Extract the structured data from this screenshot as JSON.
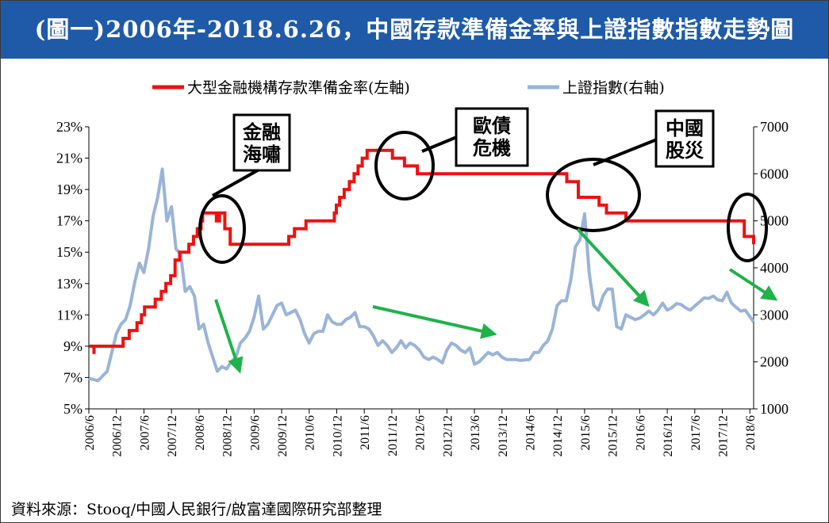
{
  "header": {
    "title": "(圖一)2006年-2018.6.26，中國存款準備金率與上證指數指數走勢圖"
  },
  "footer": {
    "source": "資料來源：Stooq/中國人民銀行/啟富達國際研究部整理"
  },
  "colors": {
    "header_bg": "#1f5aa8",
    "rrr_line": "#ee1111",
    "index_line": "#9ab4d8",
    "arrows": "#1fb24a",
    "circles": "#000000"
  },
  "chart_data": {
    "type": "line",
    "title": "(圖一)2006年-2018.6.26，中國存款準備金率與上證指數指數走勢圖",
    "legend_position": "top",
    "grid": false,
    "x_range": [
      "2006-06",
      "2018-06-26"
    ],
    "x_tick_labels": [
      "2006/6",
      "2006/12",
      "2007/6",
      "2007/12",
      "2008/6",
      "2008/12",
      "2009/6",
      "2009/12",
      "2010/6",
      "2010/12",
      "2011/6",
      "2011/12",
      "2012/6",
      "2012/12",
      "2013/6",
      "2013/12",
      "2014/6",
      "2014/12",
      "2015/6",
      "2015/12",
      "2016/6",
      "2016/12",
      "2017/6",
      "2017/12",
      "2018/6"
    ],
    "y_left": {
      "ticks": [
        "5%",
        "7%",
        "9%",
        "11%",
        "13%",
        "15%",
        "17%",
        "19%",
        "21%",
        "23%"
      ],
      "min": 5,
      "max": 23
    },
    "y_right": {
      "ticks": [
        "1000",
        "2000",
        "3000",
        "4000",
        "5000",
        "6000",
        "7000"
      ],
      "min": 1000,
      "max": 7000
    },
    "series": [
      {
        "name": "大型金融機構存款準備金率(左軸)",
        "axis": "left",
        "step": true,
        "points": [
          [
            "2006-06",
            9.0
          ],
          [
            "2006-07-05",
            8.5
          ],
          [
            "2006-07-05",
            9.0
          ],
          [
            "2006-08-15",
            9.0
          ],
          [
            "2006-11-15",
            9.0
          ],
          [
            "2007-01-15",
            9.5
          ],
          [
            "2007-02-25",
            10.0
          ],
          [
            "2007-04-16",
            10.5
          ],
          [
            "2007-05-15",
            11.0
          ],
          [
            "2007-06-05",
            11.5
          ],
          [
            "2007-08-15",
            12.0
          ],
          [
            "2007-09-25",
            12.5
          ],
          [
            "2007-10-25",
            13.0
          ],
          [
            "2007-11-26",
            13.5
          ],
          [
            "2007-12-25",
            14.5
          ],
          [
            "2008-01-25",
            15.0
          ],
          [
            "2008-03-25",
            15.5
          ],
          [
            "2008-04-25",
            16.0
          ],
          [
            "2008-05-20",
            16.5
          ],
          [
            "2008-06-15",
            17.0
          ],
          [
            "2008-06-25",
            17.5
          ],
          [
            "2008-09-25",
            17.0
          ],
          [
            "2008-10-15",
            17.5
          ],
          [
            "2008-11-20",
            16.5
          ],
          [
            "2008-12-25",
            15.5
          ],
          [
            "2010-01-18",
            16.0
          ],
          [
            "2010-02-25",
            16.5
          ],
          [
            "2010-05-10",
            17.0
          ],
          [
            "2010-11-16",
            17.5
          ],
          [
            "2010-11-29",
            18.0
          ],
          [
            "2010-12-20",
            18.5
          ],
          [
            "2011-01-20",
            19.0
          ],
          [
            "2011-02-24",
            19.5
          ],
          [
            "2011-03-25",
            20.0
          ],
          [
            "2011-04-21",
            20.5
          ],
          [
            "2011-05-18",
            21.0
          ],
          [
            "2011-06-20",
            21.5
          ],
          [
            "2011-12-05",
            21.0
          ],
          [
            "2012-02-24",
            20.5
          ],
          [
            "2012-05-18",
            20.0
          ],
          [
            "2015-02-05",
            19.5
          ],
          [
            "2015-04-20",
            18.5
          ],
          [
            "2015-09-06",
            18.0
          ],
          [
            "2015-10-24",
            17.5
          ],
          [
            "2016-03-01",
            17.0
          ],
          [
            "2018-04-25",
            16.0
          ],
          [
            "2018-06-26",
            15.5
          ]
        ]
      },
      {
        "name": "上證指數(右軸)",
        "axis": "right",
        "points": [
          [
            "2006-06",
            1650
          ],
          [
            "2006-08",
            1600
          ],
          [
            "2006-10",
            1800
          ],
          [
            "2006-12",
            2600
          ],
          [
            "2007-01",
            2800
          ],
          [
            "2007-02",
            2900
          ],
          [
            "2007-03",
            3200
          ],
          [
            "2007-04",
            3700
          ],
          [
            "2007-05",
            4100
          ],
          [
            "2007-06",
            3900
          ],
          [
            "2007-07",
            4400
          ],
          [
            "2007-08",
            5100
          ],
          [
            "2007-09",
            5500
          ],
          [
            "2007-10",
            6100
          ],
          [
            "2007-11",
            5000
          ],
          [
            "2007-12",
            5300
          ],
          [
            "2008-01",
            4400
          ],
          [
            "2008-02",
            4300
          ],
          [
            "2008-03",
            3500
          ],
          [
            "2008-04",
            3600
          ],
          [
            "2008-05",
            3400
          ],
          [
            "2008-06",
            2700
          ],
          [
            "2008-07",
            2800
          ],
          [
            "2008-08",
            2400
          ],
          [
            "2008-09",
            2100
          ],
          [
            "2008-10",
            1800
          ],
          [
            "2008-11",
            1900
          ],
          [
            "2008-12",
            1850
          ],
          [
            "2009-01",
            2000
          ],
          [
            "2009-02",
            2100
          ],
          [
            "2009-03",
            2400
          ],
          [
            "2009-04",
            2500
          ],
          [
            "2009-05",
            2650
          ],
          [
            "2009-06",
            2950
          ],
          [
            "2009-07",
            3400
          ],
          [
            "2009-08",
            2700
          ],
          [
            "2009-09",
            2800
          ],
          [
            "2009-10",
            3000
          ],
          [
            "2009-11",
            3200
          ],
          [
            "2009-12",
            3250
          ],
          [
            "2010-01",
            3000
          ],
          [
            "2010-02",
            3050
          ],
          [
            "2010-03",
            3100
          ],
          [
            "2010-04",
            2900
          ],
          [
            "2010-05",
            2600
          ],
          [
            "2010-06",
            2400
          ],
          [
            "2010-07",
            2600
          ],
          [
            "2010-08",
            2650
          ],
          [
            "2010-09",
            2650
          ],
          [
            "2010-10",
            3000
          ],
          [
            "2010-11",
            2850
          ],
          [
            "2010-12",
            2800
          ],
          [
            "2011-01",
            2800
          ],
          [
            "2011-02",
            2900
          ],
          [
            "2011-03",
            2950
          ],
          [
            "2011-04",
            3050
          ],
          [
            "2011-05",
            2750
          ],
          [
            "2011-06",
            2750
          ],
          [
            "2011-07",
            2700
          ],
          [
            "2011-08",
            2550
          ],
          [
            "2011-09",
            2350
          ],
          [
            "2011-10",
            2450
          ],
          [
            "2011-11",
            2350
          ],
          [
            "2011-12",
            2200
          ],
          [
            "2012-01",
            2300
          ],
          [
            "2012-02",
            2450
          ],
          [
            "2012-03",
            2300
          ],
          [
            "2012-04",
            2400
          ],
          [
            "2012-05",
            2350
          ],
          [
            "2012-06",
            2250
          ],
          [
            "2012-07",
            2100
          ],
          [
            "2012-08",
            2050
          ],
          [
            "2012-09",
            2100
          ],
          [
            "2012-10",
            2050
          ],
          [
            "2012-11",
            1980
          ],
          [
            "2012-12",
            2250
          ],
          [
            "2013-01",
            2400
          ],
          [
            "2013-02",
            2350
          ],
          [
            "2013-03",
            2250
          ],
          [
            "2013-04",
            2200
          ],
          [
            "2013-05",
            2300
          ],
          [
            "2013-06",
            1950
          ],
          [
            "2013-07",
            2000
          ],
          [
            "2013-08",
            2100
          ],
          [
            "2013-09",
            2200
          ],
          [
            "2013-10",
            2150
          ],
          [
            "2013-11",
            2200
          ],
          [
            "2013-12",
            2100
          ],
          [
            "2014-01",
            2050
          ],
          [
            "2014-02",
            2050
          ],
          [
            "2014-03",
            2050
          ],
          [
            "2014-04",
            2030
          ],
          [
            "2014-05",
            2040
          ],
          [
            "2014-06",
            2050
          ],
          [
            "2014-07",
            2200
          ],
          [
            "2014-08",
            2200
          ],
          [
            "2014-09",
            2350
          ],
          [
            "2014-10",
            2450
          ],
          [
            "2014-11",
            2700
          ],
          [
            "2014-12",
            3200
          ],
          [
            "2015-01",
            3300
          ],
          [
            "2015-02",
            3300
          ],
          [
            "2015-03",
            3750
          ],
          [
            "2015-04",
            4450
          ],
          [
            "2015-05",
            4600
          ],
          [
            "2015-06",
            5150
          ],
          [
            "2015-07",
            3900
          ],
          [
            "2015-08",
            3200
          ],
          [
            "2015-09",
            3100
          ],
          [
            "2015-10",
            3400
          ],
          [
            "2015-11",
            3550
          ],
          [
            "2015-12",
            3550
          ],
          [
            "2016-01",
            2750
          ],
          [
            "2016-02",
            2700
          ],
          [
            "2016-03",
            3000
          ],
          [
            "2016-04",
            2950
          ],
          [
            "2016-05",
            2900
          ],
          [
            "2016-06",
            2930
          ],
          [
            "2016-07",
            3000
          ],
          [
            "2016-08",
            3080
          ],
          [
            "2016-09",
            3000
          ],
          [
            "2016-10",
            3100
          ],
          [
            "2016-11",
            3250
          ],
          [
            "2016-12",
            3100
          ],
          [
            "2017-01",
            3150
          ],
          [
            "2017-02",
            3240
          ],
          [
            "2017-03",
            3220
          ],
          [
            "2017-04",
            3150
          ],
          [
            "2017-05",
            3100
          ],
          [
            "2017-06",
            3190
          ],
          [
            "2017-07",
            3270
          ],
          [
            "2017-08",
            3360
          ],
          [
            "2017-09",
            3350
          ],
          [
            "2017-10",
            3400
          ],
          [
            "2017-11",
            3320
          ],
          [
            "2017-12",
            3300
          ],
          [
            "2018-01",
            3480
          ],
          [
            "2018-02",
            3250
          ],
          [
            "2018-03",
            3160
          ],
          [
            "2018-04",
            3080
          ],
          [
            "2018-05",
            3100
          ],
          [
            "2018-06-26",
            2850
          ]
        ]
      }
    ],
    "annotations": [
      {
        "text": [
          "金融",
          "海嘯"
        ]
      },
      {
        "text": [
          "歐債",
          "危機"
        ]
      },
      {
        "text": [
          "中國",
          "股災"
        ]
      }
    ]
  }
}
